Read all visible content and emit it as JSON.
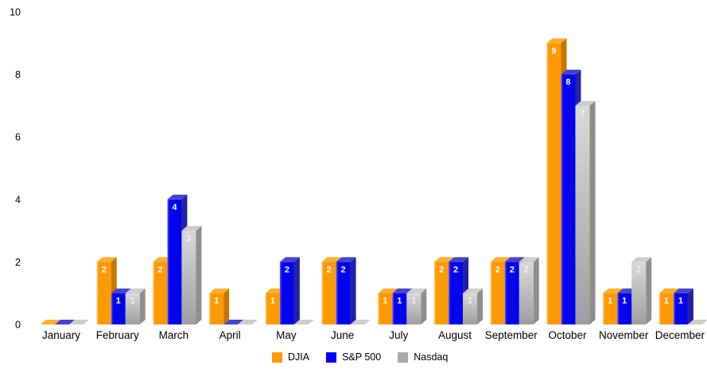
{
  "chart_data": {
    "type": "bar",
    "title": "",
    "xlabel": "",
    "ylabel": "",
    "ylim": [
      0,
      10
    ],
    "yticks": [
      0,
      2,
      4,
      6,
      8,
      10
    ],
    "grid": false,
    "legend_position": "bottom",
    "style": "3d-bars",
    "background_color": "#FFFFFF",
    "axis_text_color": "#000000",
    "categories": [
      "January",
      "February",
      "March",
      "April",
      "May",
      "June",
      "July",
      "August",
      "September",
      "October",
      "November",
      "December"
    ],
    "series": [
      {
        "name": "DJIA",
        "color": "#FF9900",
        "color_top": "#FFAE2B",
        "color_side": "#C87500",
        "front_gradient": [
          [
            0,
            "#FFC266"
          ],
          [
            0.14,
            "#FF9900"
          ],
          [
            1,
            "#FF9900"
          ]
        ],
        "front_gradient_dir": "h",
        "value_label_color": "#FFFFFF",
        "values": [
          0,
          2,
          2,
          1,
          1,
          2,
          1,
          2,
          2,
          9,
          1,
          1
        ]
      },
      {
        "name": "S&P 500",
        "color": "#0000FF",
        "color_top": "#4444CF",
        "color_side": "#2222A6",
        "front_gradient": [
          [
            0,
            "#6666FF"
          ],
          [
            0.14,
            "#0505F5"
          ],
          [
            1,
            "#0202E8"
          ]
        ],
        "front_gradient_dir": "h",
        "value_label_color": "#FFFFFF",
        "values": [
          0,
          1,
          4,
          0,
          2,
          2,
          1,
          2,
          2,
          8,
          1,
          1
        ]
      },
      {
        "name": "Nasdaq",
        "color": "#A9A9A9",
        "color_top": "#CDCDCD",
        "color_side": "#8E8E8E",
        "front_gradient": [
          [
            0,
            "#D9D9D9"
          ],
          [
            1,
            "#9E9E9E"
          ]
        ],
        "front_gradient_dir": "v",
        "value_label_color": "#F0F0F0",
        "values": [
          0,
          1,
          3,
          0,
          0,
          0,
          1,
          1,
          2,
          7,
          2,
          0
        ]
      }
    ]
  }
}
